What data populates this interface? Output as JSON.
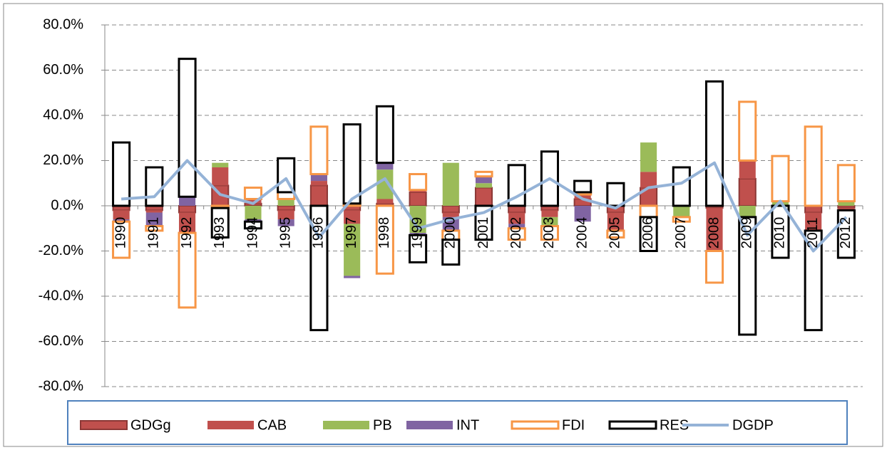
{
  "chart_data": {
    "type": "bar",
    "categories": [
      "1990",
      "1991",
      "1992",
      "1993",
      "1994",
      "1995",
      "1996",
      "1997",
      "1998",
      "1999",
      "2000",
      "2001",
      "2002",
      "2003",
      "2004",
      "2005",
      "2006",
      "2007",
      "2008",
      "2009",
      "2010",
      "2011",
      "2012"
    ],
    "ylim": [
      -80,
      80
    ],
    "yticks": [
      {
        "value": -80,
        "label": "-80.0%"
      },
      {
        "value": -60,
        "label": "-60.0%"
      },
      {
        "value": -40,
        "label": "-40.0%"
      },
      {
        "value": -20,
        "label": "-20.0%"
      },
      {
        "value": 0,
        "label": "0.0%"
      },
      {
        "value": 20,
        "label": "20.0%"
      },
      {
        "value": 40,
        "label": "40.0%"
      },
      {
        "value": 60,
        "label": "60.0%"
      },
      {
        "value": 80,
        "label": "80.0%"
      }
    ],
    "grid": true,
    "series": [
      {
        "name": "GDGg",
        "type": "bar",
        "color": "#c0504d",
        "outline": false,
        "values": [
          -2,
          -2,
          -3,
          9,
          1,
          -2,
          9,
          -2,
          1,
          6,
          -3,
          8,
          -3,
          -2,
          3,
          -3,
          8,
          0,
          -1,
          12,
          0,
          -3,
          -1
        ]
      },
      {
        "name": "CAB",
        "type": "bar",
        "color": "#c0504d",
        "outline": false,
        "values": [
          -4,
          -1,
          -9,
          8,
          2,
          -4,
          2,
          -6,
          2,
          1,
          -2,
          0,
          -5,
          -3,
          2,
          -8,
          7,
          0,
          -19,
          8,
          0,
          -8,
          -1
        ]
      },
      {
        "name": "PB",
        "type": "bar",
        "color": "#9bbb59",
        "outline": false,
        "values": [
          0,
          0,
          0,
          2,
          -6,
          3,
          0,
          -23,
          13,
          -12,
          19,
          2,
          0,
          -4,
          0,
          0,
          13,
          -5,
          0,
          -5,
          2,
          0,
          2
        ]
      },
      {
        "name": "INT",
        "type": "bar",
        "color": "#8064a2",
        "outline": false,
        "values": [
          -1,
          -6,
          4,
          0,
          -1,
          -3,
          3,
          -1,
          3,
          -1,
          -6,
          3,
          -2,
          0,
          -7,
          0,
          0,
          0,
          0,
          0,
          0,
          0,
          0
        ]
      },
      {
        "name": "FDI",
        "type": "bar",
        "color": "#f79646",
        "outline": true,
        "values": [
          -16,
          -2,
          -33,
          -1,
          5,
          3,
          21,
          1,
          -30,
          7,
          -4,
          2,
          -5,
          -6,
          1,
          -3,
          -5,
          -2,
          -14,
          26,
          20,
          35,
          16
        ]
      },
      {
        "name": "RES",
        "type": "bar",
        "color": "#000000",
        "outline": true,
        "values": [
          28,
          17,
          61,
          -13,
          -3,
          15,
          -55,
          35,
          25,
          -12,
          -11,
          -15,
          18,
          24,
          5,
          10,
          -15,
          17,
          55,
          -52,
          -23,
          -44,
          -21
        ]
      },
      {
        "name": "DGDP",
        "type": "line",
        "color": "#95b3d7",
        "outline": false,
        "values": [
          3,
          4,
          20,
          5,
          1,
          12,
          -14,
          3,
          12,
          -10,
          -6,
          -3,
          4,
          12,
          3,
          -1,
          8,
          10,
          19,
          -13,
          2,
          -20,
          -5
        ]
      }
    ]
  }
}
